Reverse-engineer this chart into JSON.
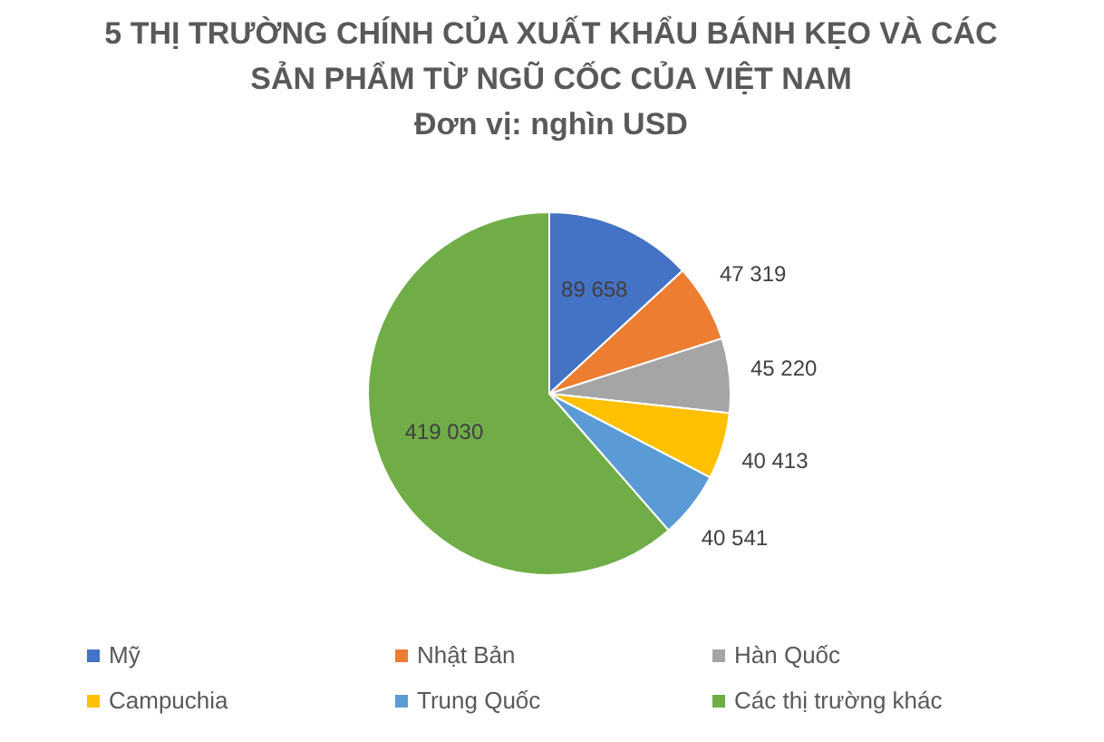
{
  "chart_data": {
    "type": "pie",
    "title": "5 THỊ TRƯỜNG CHÍNH CỦA XUẤT KHẨU BÁNH KẸO VÀ CÁC SẢN PHẨM TỪ NGŨ CỐC CỦA VIỆT NAM",
    "subtitle": "Đơn vị: nghìn USD",
    "categories": [
      "Mỹ",
      "Nhật Bản",
      "Hàn Quốc",
      "Campuchia",
      "Trung Quốc",
      "Các thị trường khác"
    ],
    "values": [
      89658,
      47319,
      45220,
      40413,
      40541,
      419030
    ],
    "value_labels": [
      "89 658",
      "47 319",
      "45 220",
      "40 413",
      "40 541",
      "419 030"
    ],
    "colors": [
      "#4472c4",
      "#ed7d31",
      "#a5a5a5",
      "#ffc000",
      "#5b9bd5",
      "#70ad47"
    ],
    "legend": "bottom"
  }
}
